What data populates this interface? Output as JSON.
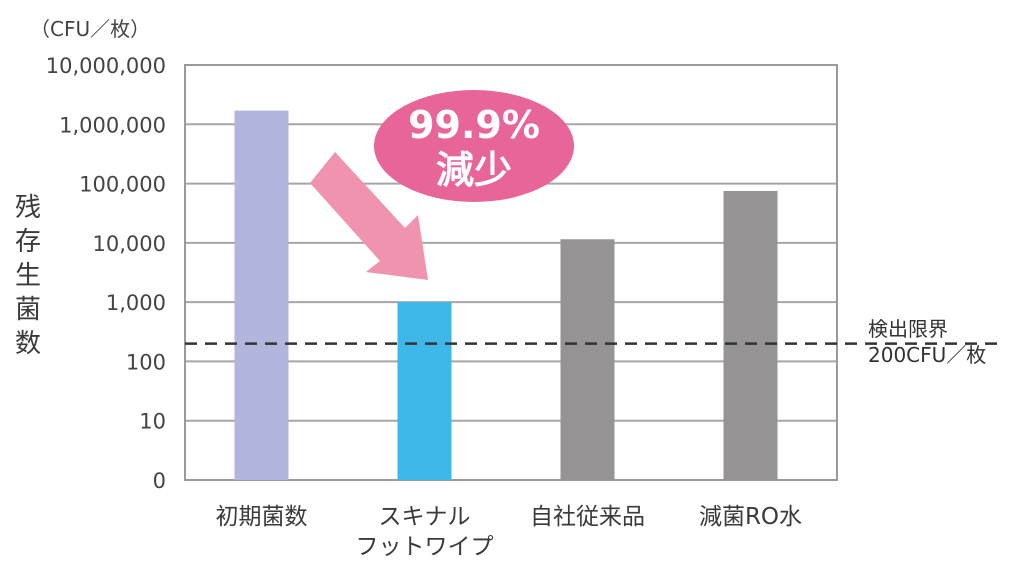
{
  "chart_data": {
    "type": "bar",
    "y_scale": "log",
    "unit_label": "（CFU／枚）",
    "ylabel_chars": [
      "残",
      "存",
      "生",
      "菌",
      "数"
    ],
    "y_ticks": [
      "10,000,000",
      "1,000,000",
      "100,000",
      "10,000",
      "1,000",
      "100",
      "10",
      "0"
    ],
    "categories": [
      {
        "lines": [
          "初期菌数"
        ]
      },
      {
        "lines": [
          "スキナル",
          "フットワイプ"
        ]
      },
      {
        "lines": [
          "自社従来品"
        ]
      },
      {
        "lines": [
          "減菌RO水"
        ]
      }
    ],
    "values": [
      1700000,
      1000,
      11500,
      75000
    ],
    "colors": [
      "#b0b6dc",
      "#3db8e8",
      "#959394",
      "#959394"
    ],
    "grid": true,
    "detection_limit": {
      "value": 200,
      "label_line1": "検出限界",
      "label_line2": "200CFU／枚"
    },
    "callout": {
      "line1": "99.9%",
      "line2": "減少",
      "color": "#e8659a",
      "arrow_color": "#f093ae"
    }
  }
}
